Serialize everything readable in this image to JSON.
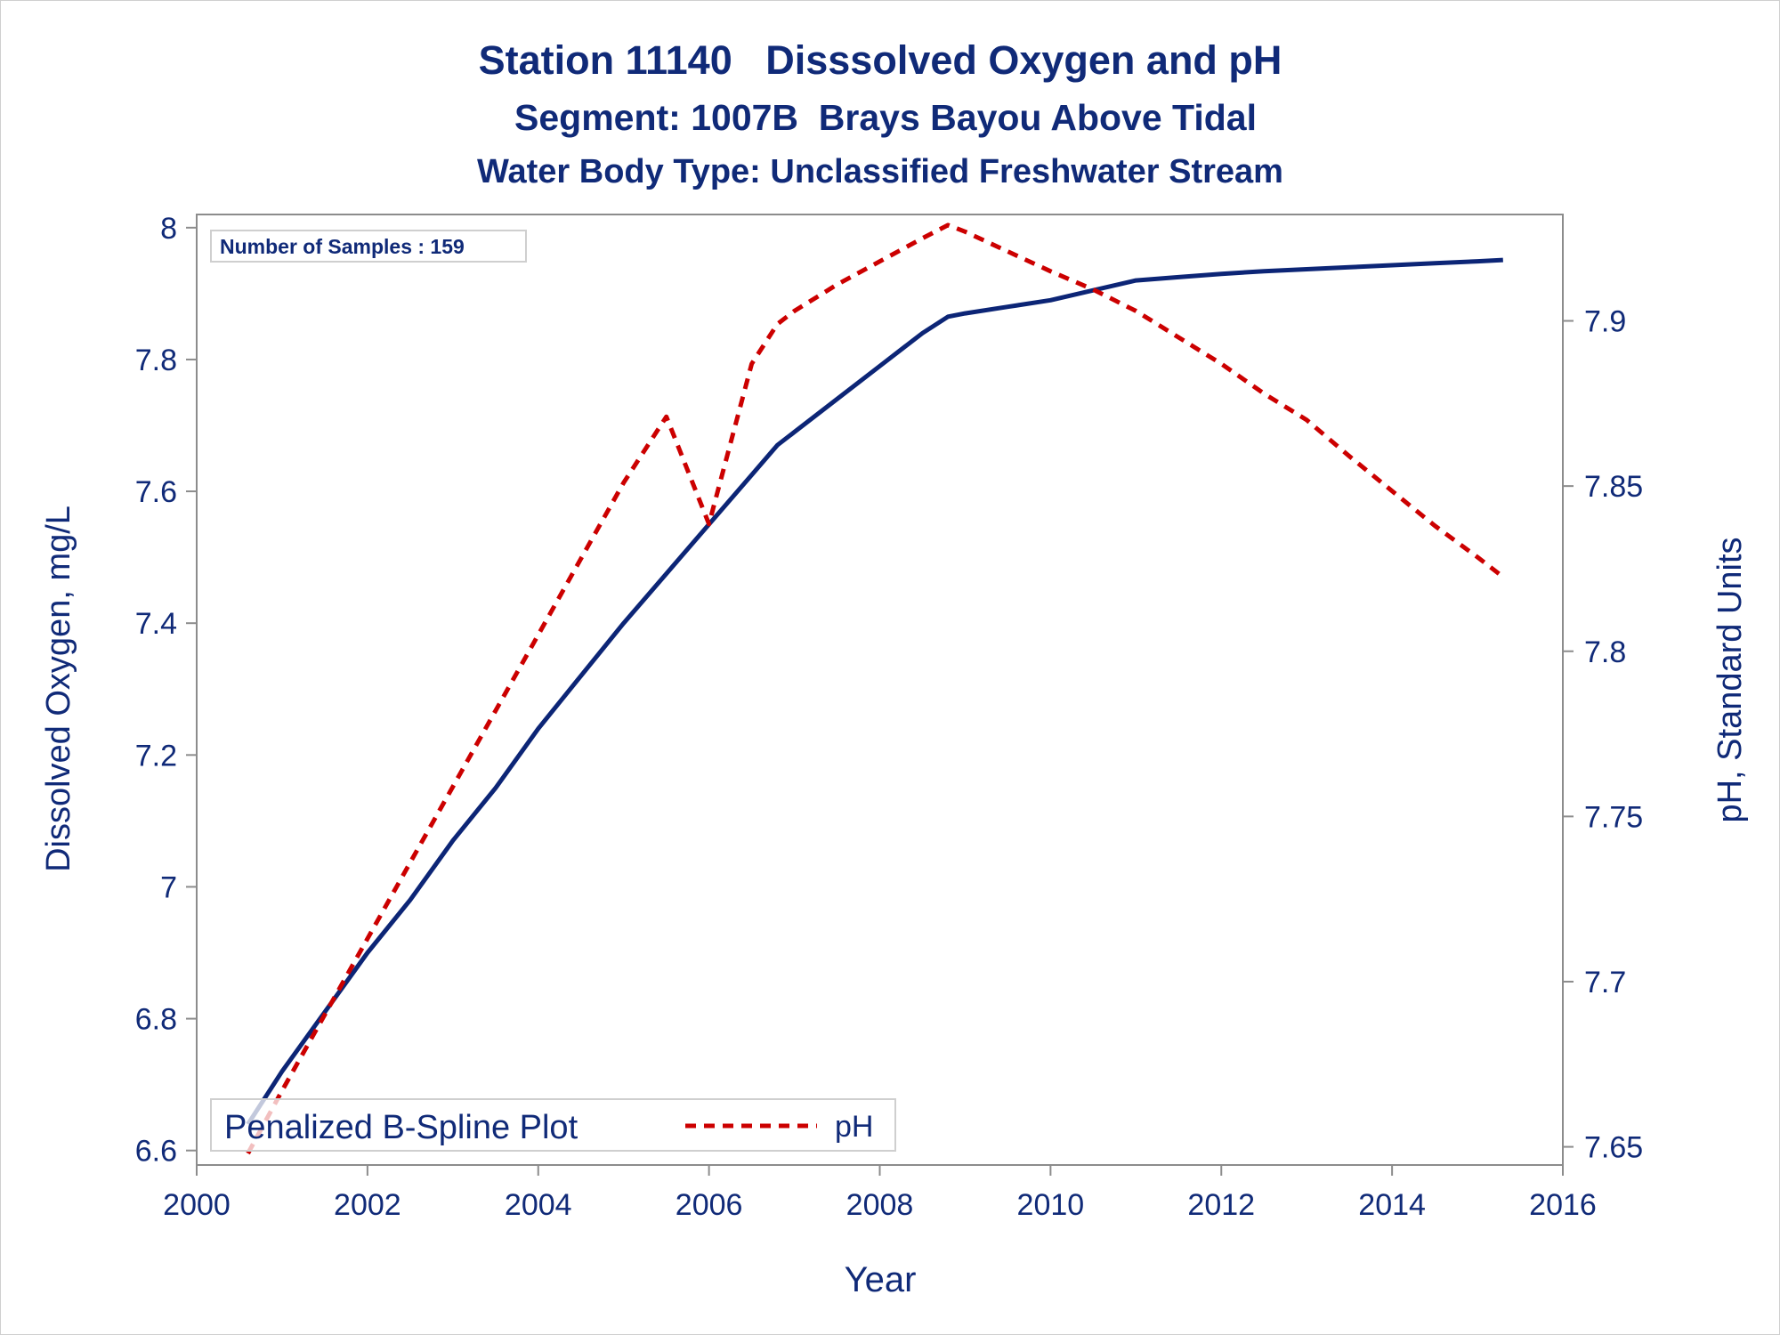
{
  "colors": {
    "text": "#102a78",
    "axis": "#8c8c8c",
    "do_line": "#0c2576",
    "ph_line": "#cc0000",
    "frame": "#cfcfcf"
  },
  "chart_data": {
    "type": "line",
    "title": "Station 11140   Disssolved Oxygen and pH",
    "subtitle": "Segment: 1007B  Brays Bayou Above Tidal",
    "subtitle2": "Water Body Type: Unclassified Freshwater Stream",
    "xlabel": "Year",
    "ylabel": "Dissolved Oxygen, mg/L",
    "y2label": "pH, Standard Units",
    "xlim": [
      2000,
      2016
    ],
    "ylim": [
      6.578,
      8.02
    ],
    "y2lim": [
      7.6445,
      7.9322
    ],
    "x_ticks": [
      2000,
      2002,
      2004,
      2006,
      2008,
      2010,
      2012,
      2014,
      2016
    ],
    "y_ticks": [
      6.6,
      6.8,
      7,
      7.2,
      7.4,
      7.6,
      7.8,
      8
    ],
    "y2_ticks": [
      7.65,
      7.7,
      7.75,
      7.8,
      7.85,
      7.9
    ],
    "grid": false,
    "inset_label": "Number of Samples : 159",
    "legend": {
      "placement": "bottom-left",
      "title": "Penalized B-Spline Plot",
      "entries": [
        {
          "label": "pH",
          "series": "ph"
        }
      ]
    },
    "series": [
      {
        "id": "do",
        "axis": "left",
        "style": "solid",
        "x": [
          2000.6,
          2001.0,
          2001.5,
          2002.0,
          2002.5,
          2003.0,
          2003.5,
          2004.0,
          2004.5,
          2005.0,
          2005.5,
          2006.0,
          2006.5,
          2006.8,
          2007.0,
          2007.5,
          2008.0,
          2008.5,
          2008.8,
          2009.0,
          2009.5,
          2010.0,
          2010.5,
          2011.0,
          2011.5,
          2012.0,
          2012.5,
          2013.0,
          2013.5,
          2014.0,
          2014.5,
          2015.0,
          2015.3
        ],
        "y": [
          6.64,
          6.72,
          6.81,
          6.9,
          6.98,
          7.07,
          7.15,
          7.24,
          7.32,
          7.4,
          7.475,
          7.55,
          7.625,
          7.67,
          7.69,
          7.74,
          7.79,
          7.84,
          7.865,
          7.87,
          7.88,
          7.89,
          7.905,
          7.92,
          7.925,
          7.93,
          7.934,
          7.937,
          7.94,
          7.943,
          7.946,
          7.949,
          7.951
        ]
      },
      {
        "id": "ph",
        "axis": "right",
        "style": "dashed",
        "x": [
          2000.6,
          2001.0,
          2001.5,
          2002.0,
          2002.5,
          2003.0,
          2003.5,
          2004.0,
          2004.5,
          2005.0,
          2005.5,
          2006.0,
          2006.5,
          2006.8,
          2007.0,
          2007.5,
          2008.0,
          2008.5,
          2008.8,
          2009.0,
          2009.5,
          2010.0,
          2010.5,
          2011.0,
          2011.5,
          2012.0,
          2012.5,
          2013.0,
          2013.5,
          2014.0,
          2014.5,
          2015.0,
          2015.3
        ],
        "y": [
          7.648,
          7.667,
          7.69,
          7.713,
          7.736,
          7.759,
          7.782,
          7.805,
          7.828,
          7.851,
          7.871,
          7.8385,
          7.887,
          7.899,
          7.903,
          7.911,
          7.918,
          7.925,
          7.929,
          7.927,
          7.921,
          7.915,
          7.9095,
          7.903,
          7.895,
          7.887,
          7.878,
          7.87,
          7.859,
          7.8485,
          7.838,
          7.8285,
          7.8225
        ]
      }
    ]
  }
}
